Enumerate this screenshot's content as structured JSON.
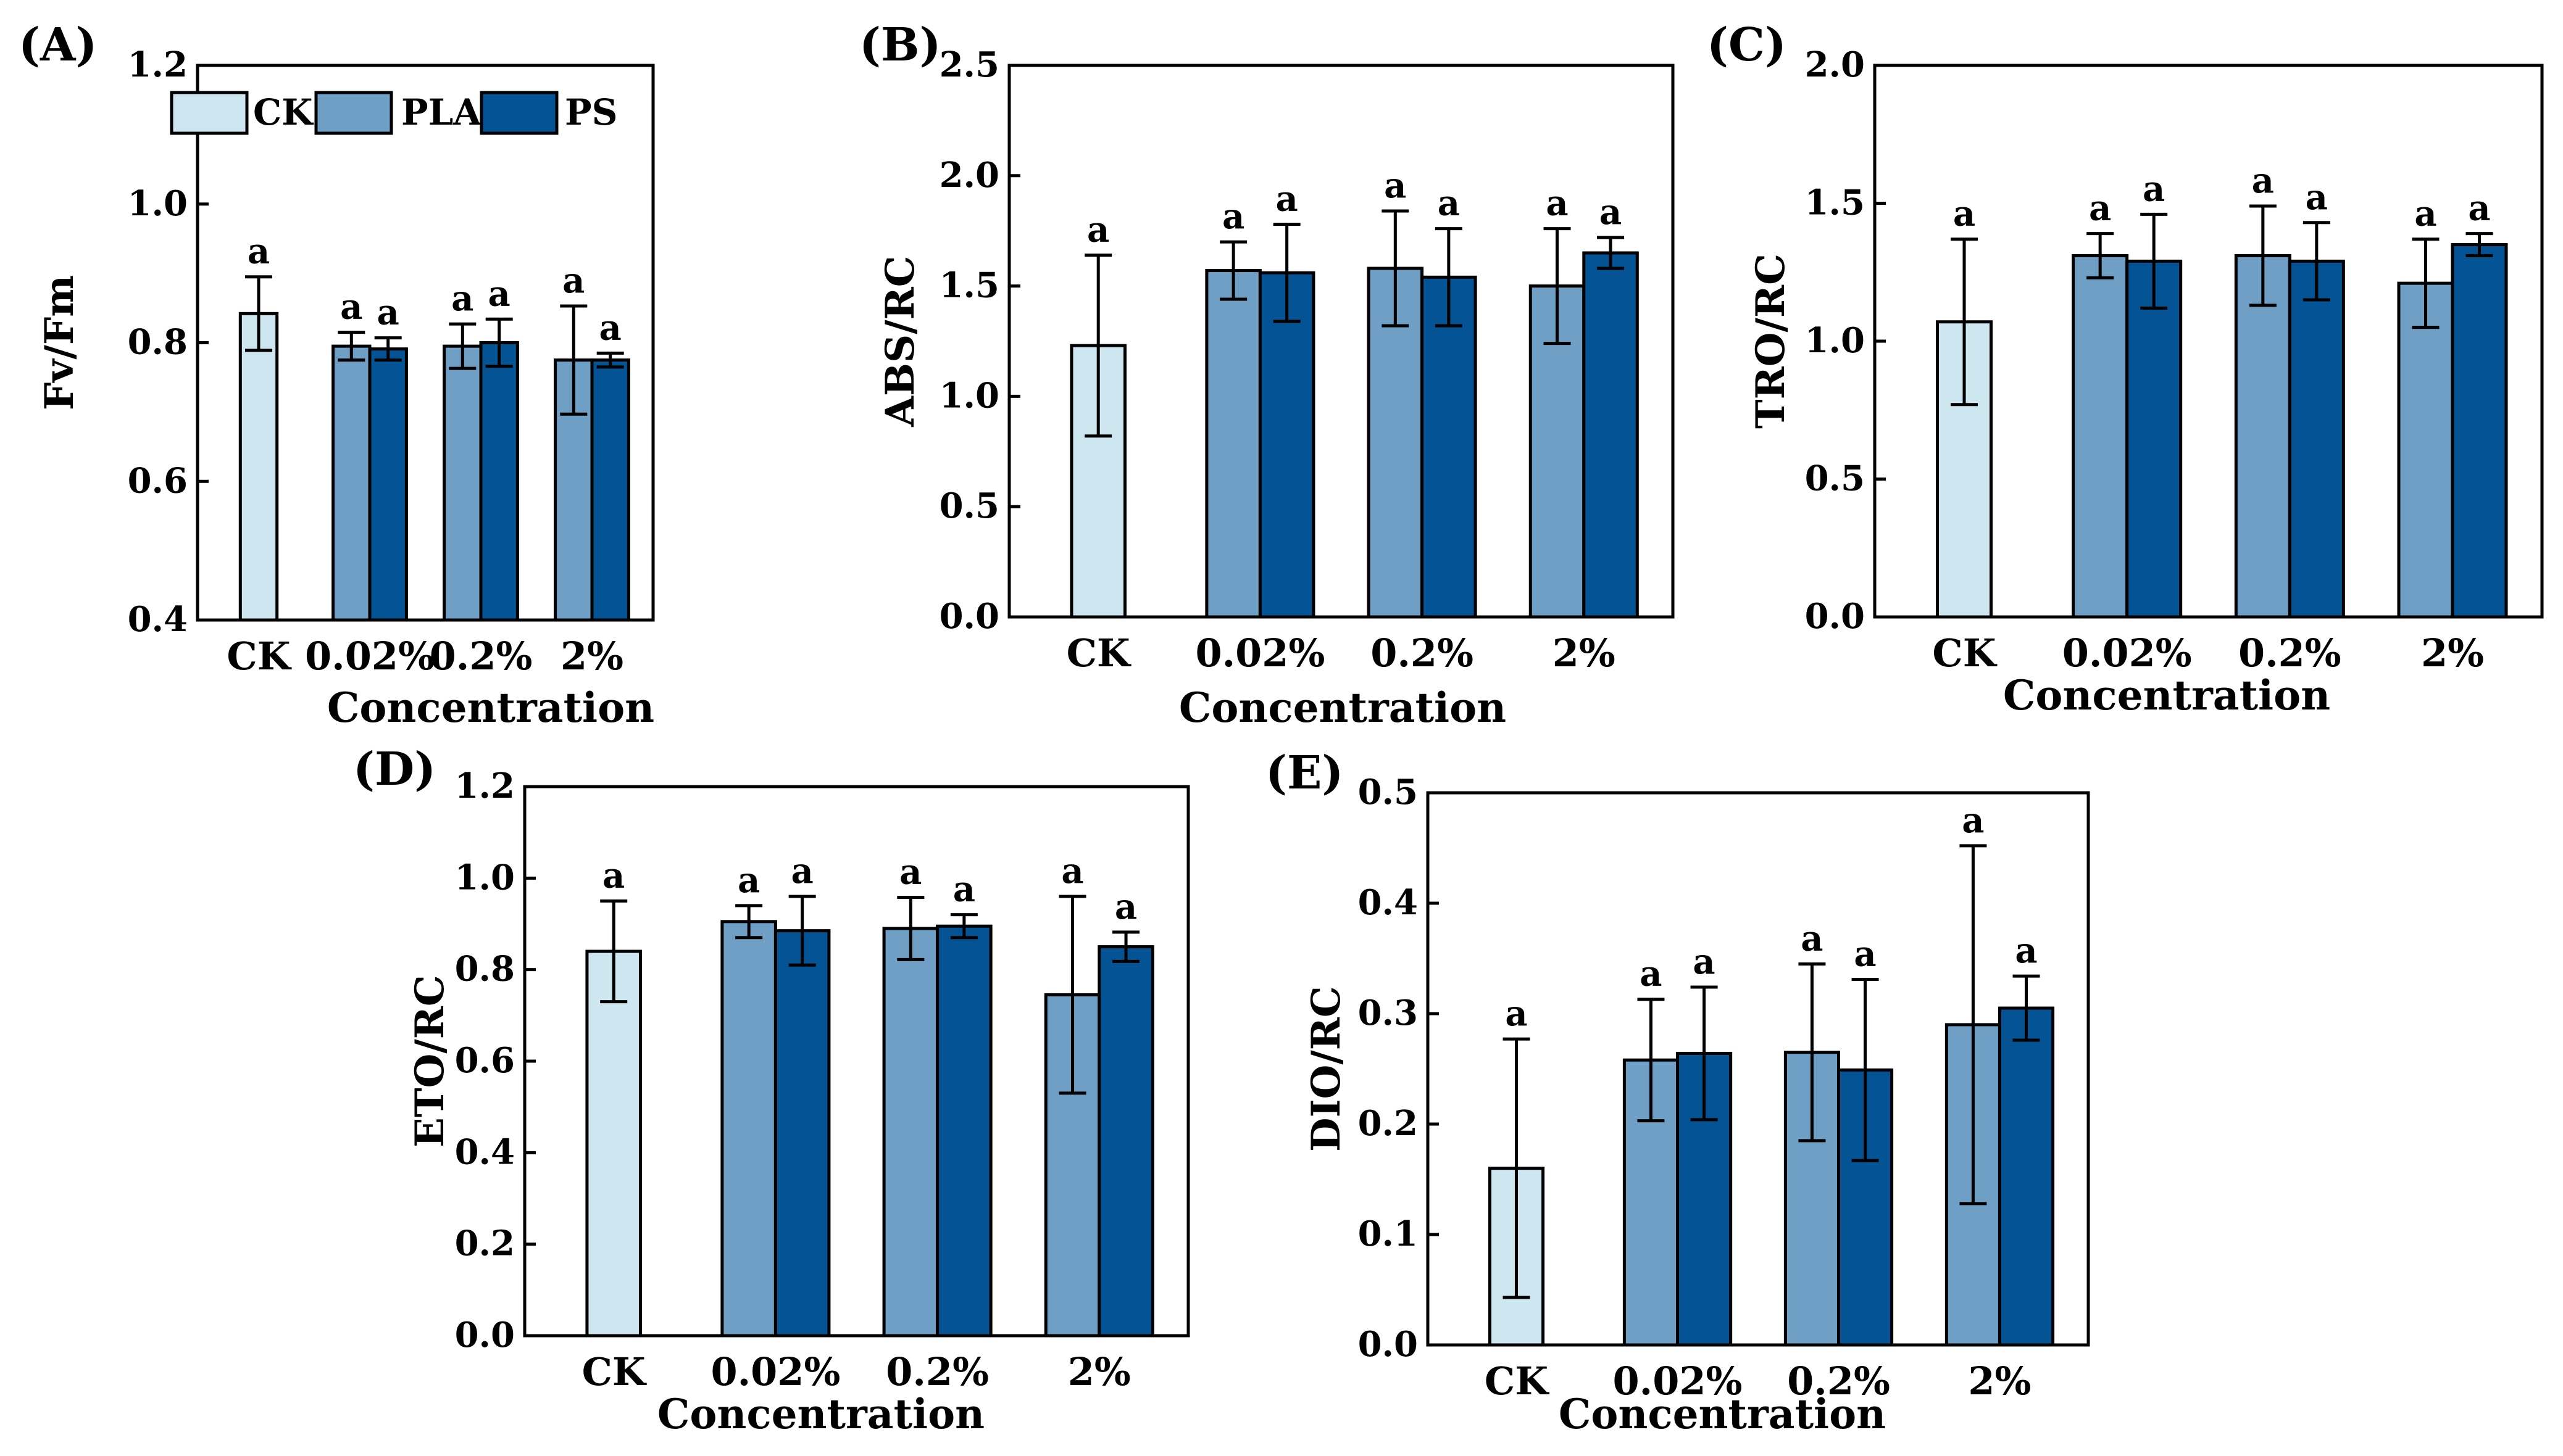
{
  "figure": {
    "colors": {
      "CK": "#cde6ef",
      "PLA": "#6f9fc5",
      "PS": "#045394"
    },
    "legend": [
      {
        "key": "CK",
        "label": "CK"
      },
      {
        "key": "PLA",
        "label": "PLA"
      },
      {
        "key": "PS",
        "label": "PS"
      }
    ]
  },
  "chart_data": [
    {
      "panel": "(A)",
      "type": "bar",
      "ylabel": "Fv/Fm",
      "xlabel": "Concentration",
      "ylim": [
        0.4,
        1.2
      ],
      "yticks": [
        "0.4",
        "0.6",
        "0.8",
        "1.0",
        "1.2"
      ],
      "categories": [
        "CK",
        "0.02%",
        "0.2%",
        "2%"
      ],
      "legend": "top-left",
      "series": [
        {
          "name": "CK",
          "values": [
            0.842,
            null,
            null,
            null
          ],
          "errors": [
            0.053,
            null,
            null,
            null
          ],
          "letters": [
            "a",
            null,
            null,
            null
          ]
        },
        {
          "name": "PLA",
          "values": [
            null,
            0.795,
            0.795,
            0.775
          ],
          "errors": [
            null,
            0.02,
            0.032,
            0.078
          ],
          "letters": [
            null,
            "a",
            "a",
            "a"
          ]
        },
        {
          "name": "PS",
          "values": [
            null,
            0.791,
            0.8,
            0.775
          ],
          "errors": [
            null,
            0.016,
            0.034,
            0.01
          ],
          "letters": [
            null,
            "a",
            "a",
            "a"
          ]
        }
      ]
    },
    {
      "panel": "(B)",
      "type": "bar",
      "ylabel": "ABS/RC",
      "xlabel": "Concentration",
      "ylim": [
        0,
        2.5
      ],
      "yticks": [
        "0.0",
        "0.5",
        "1.0",
        "1.5",
        "2.0",
        "2.5"
      ],
      "categories": [
        "CK",
        "0.02%",
        "0.2%",
        "2%"
      ],
      "series": [
        {
          "name": "CK",
          "values": [
            1.23,
            null,
            null,
            null
          ],
          "errors": [
            0.41,
            null,
            null,
            null
          ],
          "letters": [
            "a",
            null,
            null,
            null
          ]
        },
        {
          "name": "PLA",
          "values": [
            null,
            1.57,
            1.58,
            1.5
          ],
          "errors": [
            null,
            0.13,
            0.26,
            0.26
          ],
          "letters": [
            null,
            "a",
            "a",
            "a"
          ]
        },
        {
          "name": "PS",
          "values": [
            null,
            1.56,
            1.54,
            1.65
          ],
          "errors": [
            null,
            0.22,
            0.22,
            0.07
          ],
          "letters": [
            null,
            "a",
            "a",
            "a"
          ]
        }
      ]
    },
    {
      "panel": "(C)",
      "type": "bar",
      "ylabel": "TRO/RC",
      "xlabel": "Concentration",
      "ylim": [
        0,
        2.0
      ],
      "yticks": [
        "0.0",
        "0.5",
        "1.0",
        "1.5",
        "2.0"
      ],
      "categories": [
        "CK",
        "0.02%",
        "0.2%",
        "2%"
      ],
      "series": [
        {
          "name": "CK",
          "values": [
            1.07,
            null,
            null,
            null
          ],
          "errors": [
            0.3,
            null,
            null,
            null
          ],
          "letters": [
            "a",
            null,
            null,
            null
          ]
        },
        {
          "name": "PLA",
          "values": [
            null,
            1.31,
            1.31,
            1.21
          ],
          "errors": [
            null,
            0.08,
            0.18,
            0.16
          ],
          "letters": [
            null,
            "a",
            "a",
            "a"
          ]
        },
        {
          "name": "PS",
          "values": [
            null,
            1.29,
            1.29,
            1.35
          ],
          "errors": [
            null,
            0.17,
            0.14,
            0.04
          ],
          "letters": [
            null,
            "a",
            "a",
            "a"
          ]
        }
      ]
    },
    {
      "panel": "(D)",
      "type": "bar",
      "ylabel": "ETO/RC",
      "xlabel": "Concentration",
      "ylim": [
        0,
        1.2
      ],
      "yticks": [
        "0.0",
        "0.2",
        "0.4",
        "0.6",
        "0.8",
        "1.0",
        "1.2"
      ],
      "categories": [
        "CK",
        "0.02%",
        "0.2%",
        "2%"
      ],
      "series": [
        {
          "name": "CK",
          "values": [
            0.84,
            null,
            null,
            null
          ],
          "errors": [
            0.11,
            null,
            null,
            null
          ],
          "letters": [
            "a",
            null,
            null,
            null
          ]
        },
        {
          "name": "PLA",
          "values": [
            null,
            0.905,
            0.89,
            0.745
          ],
          "errors": [
            null,
            0.035,
            0.068,
            0.215
          ],
          "letters": [
            null,
            "a",
            "a",
            "a"
          ]
        },
        {
          "name": "PS",
          "values": [
            null,
            0.885,
            0.895,
            0.85
          ],
          "errors": [
            null,
            0.075,
            0.025,
            0.032
          ],
          "letters": [
            null,
            "a",
            "a",
            "a"
          ]
        }
      ]
    },
    {
      "panel": "(E)",
      "type": "bar",
      "ylabel": "DIO/RC",
      "xlabel": "Concentration",
      "ylim": [
        0,
        0.5
      ],
      "yticks": [
        "0.0",
        "0.1",
        "0.2",
        "0.3",
        "0.4",
        "0.5"
      ],
      "categories": [
        "CK",
        "0.02%",
        "0.2%",
        "2%"
      ],
      "series": [
        {
          "name": "CK",
          "values": [
            0.16,
            null,
            null,
            null
          ],
          "errors": [
            0.117,
            null,
            null,
            null
          ],
          "letters": [
            "a",
            null,
            null,
            null
          ]
        },
        {
          "name": "PLA",
          "values": [
            null,
            0.258,
            0.265,
            0.29
          ],
          "errors": [
            null,
            0.055,
            0.08,
            0.162
          ],
          "letters": [
            null,
            "a",
            "a",
            "a"
          ]
        },
        {
          "name": "PS",
          "values": [
            null,
            0.264,
            0.249,
            0.305
          ],
          "errors": [
            null,
            0.06,
            0.082,
            0.029
          ],
          "letters": [
            null,
            "a",
            "a",
            "a"
          ]
        }
      ]
    }
  ]
}
